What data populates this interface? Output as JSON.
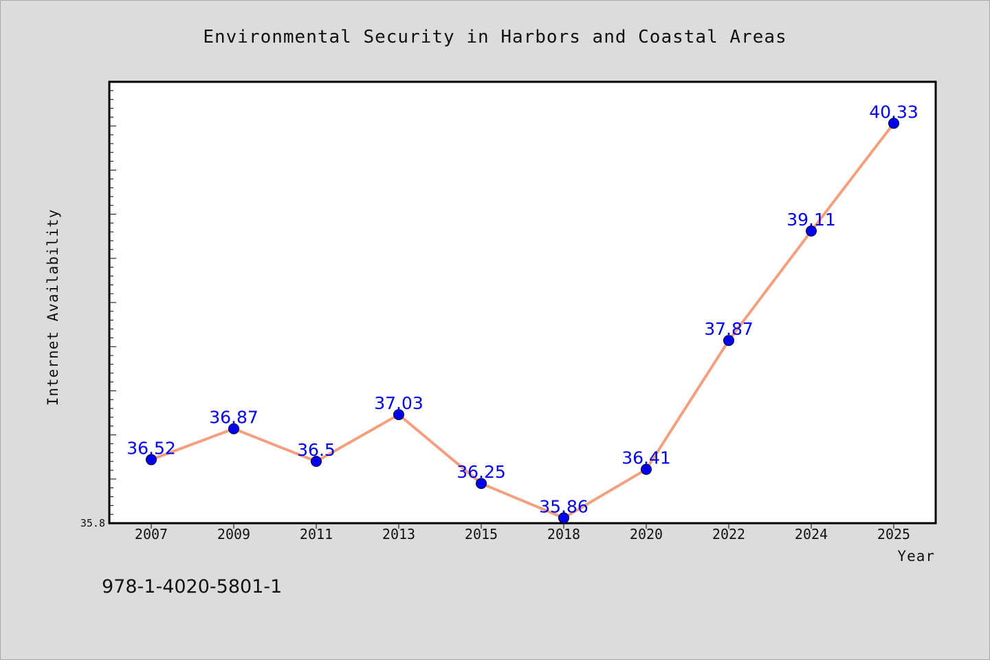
{
  "chart_data": {
    "type": "line",
    "title": "Environmental Security in Harbors and Coastal Areas",
    "xlabel": "Year",
    "ylabel": "Internet Availability",
    "categories": [
      "2007",
      "2009",
      "2011",
      "2013",
      "2015",
      "2018",
      "2020",
      "2022",
      "2024",
      "2025"
    ],
    "series": [
      {
        "values": [
          36.52,
          36.87,
          36.5,
          37.03,
          36.25,
          35.86,
          36.41,
          37.87,
          39.11,
          40.33
        ],
        "labels": [
          "36.52",
          "36.87",
          "36.5",
          "37.03",
          "36.25",
          "35.86",
          "36.41",
          "37.87",
          "39.11",
          "40.33"
        ]
      }
    ],
    "ylim": [
      35.8,
      40.8
    ],
    "ytick_labels": [
      "35.8"
    ],
    "grid": false,
    "legend": "none"
  },
  "colors": {
    "line": "#f4a07e",
    "marker": "#0000ee",
    "data_label": "#0000ee",
    "plot_background": "#ffffff",
    "page_background": "#dcdcdc"
  },
  "annotation": "978-1-4020-5801-1"
}
